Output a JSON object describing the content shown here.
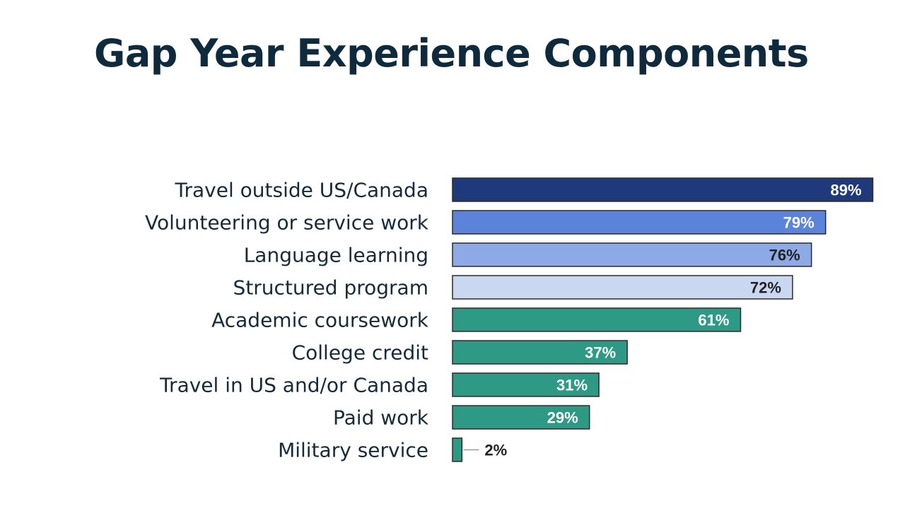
{
  "page": {
    "title": "Gap Year Experience Components"
  },
  "chart_data": {
    "type": "bar",
    "orientation": "horizontal",
    "title": "Gap Year Experience Components",
    "categories": [
      "Travel outside US/Canada",
      "Volunteering or service work",
      "Language learning",
      "Structured program",
      "Academic coursework",
      "College credit",
      "Travel in US and/or Canada",
      "Paid work",
      "Military service"
    ],
    "values": [
      89,
      79,
      76,
      72,
      61,
      37,
      31,
      29,
      2
    ],
    "value_labels": [
      "89%",
      "79%",
      "76%",
      "72%",
      "61%",
      "37%",
      "31%",
      "29%",
      "2%"
    ],
    "bar_colors": [
      "#1f3a7a",
      "#5b83d9",
      "#8eaae6",
      "#c9d7f2",
      "#2e9a86",
      "#2e9a86",
      "#2e9a86",
      "#2e9a86",
      "#2e9a86"
    ],
    "label_colors": [
      "#ffffff",
      "#ffffff",
      "#222222",
      "#222222",
      "#ffffff",
      "#ffffff",
      "#ffffff",
      "#ffffff",
      "#222222"
    ],
    "xlabel": "",
    "ylabel": "",
    "xlim": [
      0,
      100
    ],
    "grid": false,
    "legend": "none"
  }
}
